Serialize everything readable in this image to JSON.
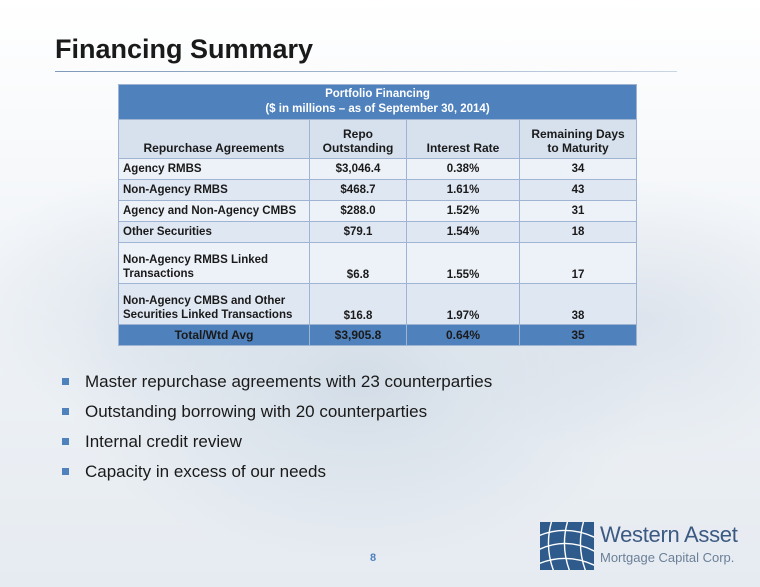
{
  "slide": {
    "title": "Financing Summary",
    "page_number": "8"
  },
  "table": {
    "header_line1": "Portfolio Financing",
    "header_line2": "($ in millions – as of  September 30, 2014)",
    "columns": {
      "col1": "Repurchase Agreements",
      "col2_line1": "Repo",
      "col2_line2": "Outstanding",
      "col3": "Interest Rate",
      "col4_line1": "Remaining Days",
      "col4_line2": "to Maturity"
    },
    "rows": [
      {
        "label": "Agency RMBS",
        "repo": "$3,046.4",
        "rate": "0.38%",
        "days": "34"
      },
      {
        "label": "Non-Agency RMBS",
        "repo": "$468.7",
        "rate": "1.61%",
        "days": "43"
      },
      {
        "label": "Agency and Non-Agency CMBS",
        "repo": "$288.0",
        "rate": "1.52%",
        "days": "31"
      },
      {
        "label": "Other Securities",
        "repo": "$79.1",
        "rate": "1.54%",
        "days": "18"
      },
      {
        "label_line1": "Non-Agency RMBS Linked",
        "label_line2": "Transactions",
        "repo": "$6.8",
        "rate": "1.55%",
        "days": "17"
      },
      {
        "label_line1": "Non-Agency CMBS and Other",
        "label_line2": "Securities Linked Transactions",
        "repo": "$16.8",
        "rate": "1.97%",
        "days": "38"
      }
    ],
    "total": {
      "label": "Total/Wtd Avg",
      "repo": "$3,905.8",
      "rate": "0.64%",
      "days": "35"
    }
  },
  "bullets": [
    "Master repurchase agreements with 23 counterparties",
    "Outstanding borrowing with 20 counterparties",
    "Internal credit review",
    "Capacity in excess of our needs"
  ],
  "logo": {
    "name": "Western Asset",
    "subtitle": "Mortgage Capital Corp."
  },
  "colors": {
    "accent": "#4f81bd",
    "header_bg": "#4f81bd",
    "column_header_bg": "#d7e1ee",
    "row_bg": "#edf2f8",
    "logo_blue": "#3b5a82"
  }
}
